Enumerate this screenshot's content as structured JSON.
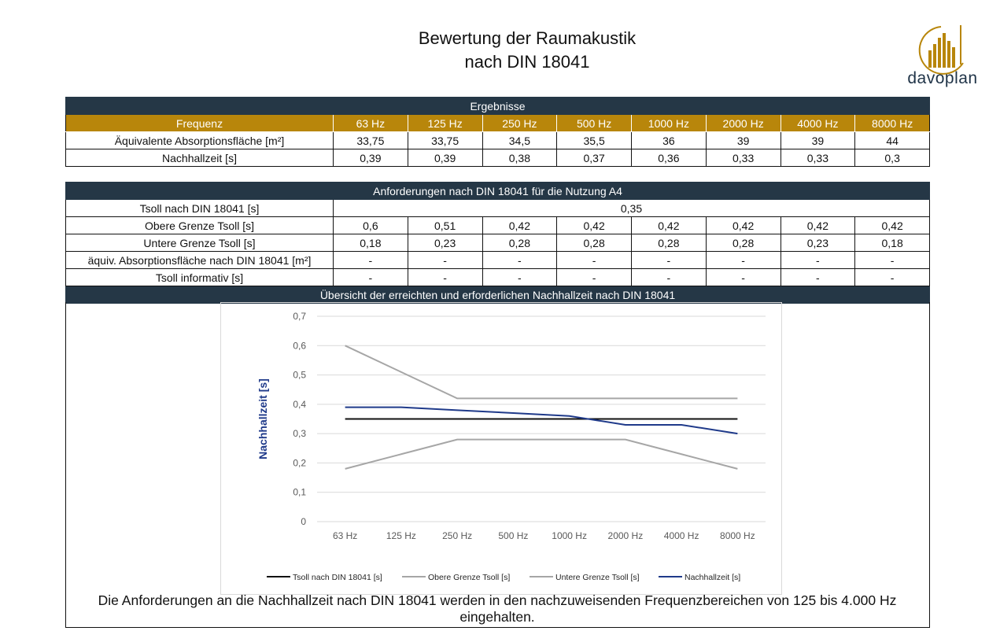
{
  "page": {
    "title_line1": "Bewertung der Raumakustik",
    "title_line2": "nach DIN 18041",
    "logo_text": "davoplan",
    "logo_color": "#b8860b"
  },
  "results": {
    "header": "Ergebnisse",
    "freq_label": "Frequenz",
    "frequencies": [
      "63 Hz",
      "125 Hz",
      "250 Hz",
      "500 Hz",
      "1000 Hz",
      "2000 Hz",
      "4000 Hz",
      "8000 Hz"
    ],
    "absorption_label": "Äquivalente Absorptionsfläche [m²]",
    "absorption": [
      "33,75",
      "33,75",
      "34,5",
      "35,5",
      "36",
      "39",
      "39",
      "44"
    ],
    "reverb_label": "Nachhallzeit [s]",
    "reverb": [
      "0,39",
      "0,39",
      "0,38",
      "0,37",
      "0,36",
      "0,33",
      "0,33",
      "0,3"
    ]
  },
  "requirements": {
    "header": "Anforderungen nach DIN 18041 für die Nutzung A4",
    "tsoll_label": "Tsoll nach DIN 18041 [s]",
    "tsoll_value": "0,35",
    "upper_label": "Obere Grenze Tsoll [s]",
    "upper": [
      "0,6",
      "0,51",
      "0,42",
      "0,42",
      "0,42",
      "0,42",
      "0,42",
      "0,42"
    ],
    "lower_label": "Untere Grenze Tsoll [s]",
    "lower": [
      "0,18",
      "0,23",
      "0,28",
      "0,28",
      "0,28",
      "0,28",
      "0,23",
      "0,18"
    ],
    "equiv_label": "äquiv. Absorptionsfläche nach DIN 18041 [m²]",
    "equiv": [
      "-",
      "-",
      "-",
      "-",
      "-",
      "-",
      "-",
      "-"
    ],
    "info_label": "Tsoll informativ [s]",
    "info": [
      "-",
      "-",
      "-",
      "-",
      "-",
      "-",
      "-",
      "-"
    ],
    "overview_header": "Übersicht der erreichten und erforderlichen Nachhallzeit nach DIN 18041"
  },
  "chart_data": {
    "type": "line",
    "title": "",
    "xlabel": "",
    "ylabel": "Nachhallzeit [s]",
    "categories": [
      "63 Hz",
      "125 Hz",
      "250 Hz",
      "500 Hz",
      "1000 Hz",
      "2000 Hz",
      "4000 Hz",
      "8000 Hz"
    ],
    "ylim": [
      0,
      0.7
    ],
    "yticks": [
      "0",
      "0,1",
      "0,2",
      "0,3",
      "0,4",
      "0,5",
      "0,6",
      "0,7"
    ],
    "grid": true,
    "legend_position": "bottom",
    "series": [
      {
        "name": "Tsoll nach DIN 18041 [s]",
        "color": "#111111",
        "values": [
          0.35,
          0.35,
          0.35,
          0.35,
          0.35,
          0.35,
          0.35,
          0.35
        ]
      },
      {
        "name": "Obere Grenze Tsoll [s]",
        "color": "#a6a6a6",
        "values": [
          0.6,
          0.51,
          0.42,
          0.42,
          0.42,
          0.42,
          0.42,
          0.42
        ]
      },
      {
        "name": "Untere Grenze Tsoll [s]",
        "color": "#a6a6a6",
        "values": [
          0.18,
          0.23,
          0.28,
          0.28,
          0.28,
          0.28,
          0.23,
          0.18
        ]
      },
      {
        "name": "Nachhallzeit [s]",
        "color": "#1f3a8a",
        "values": [
          0.39,
          0.39,
          0.38,
          0.37,
          0.36,
          0.33,
          0.33,
          0.3
        ]
      }
    ]
  },
  "conclusion": "Die Anforderungen an die Nachhallzeit nach DIN 18041 werden in den nachzuweisenden Frequenzbereichen von 125 bis 4.000 Hz eingehalten."
}
